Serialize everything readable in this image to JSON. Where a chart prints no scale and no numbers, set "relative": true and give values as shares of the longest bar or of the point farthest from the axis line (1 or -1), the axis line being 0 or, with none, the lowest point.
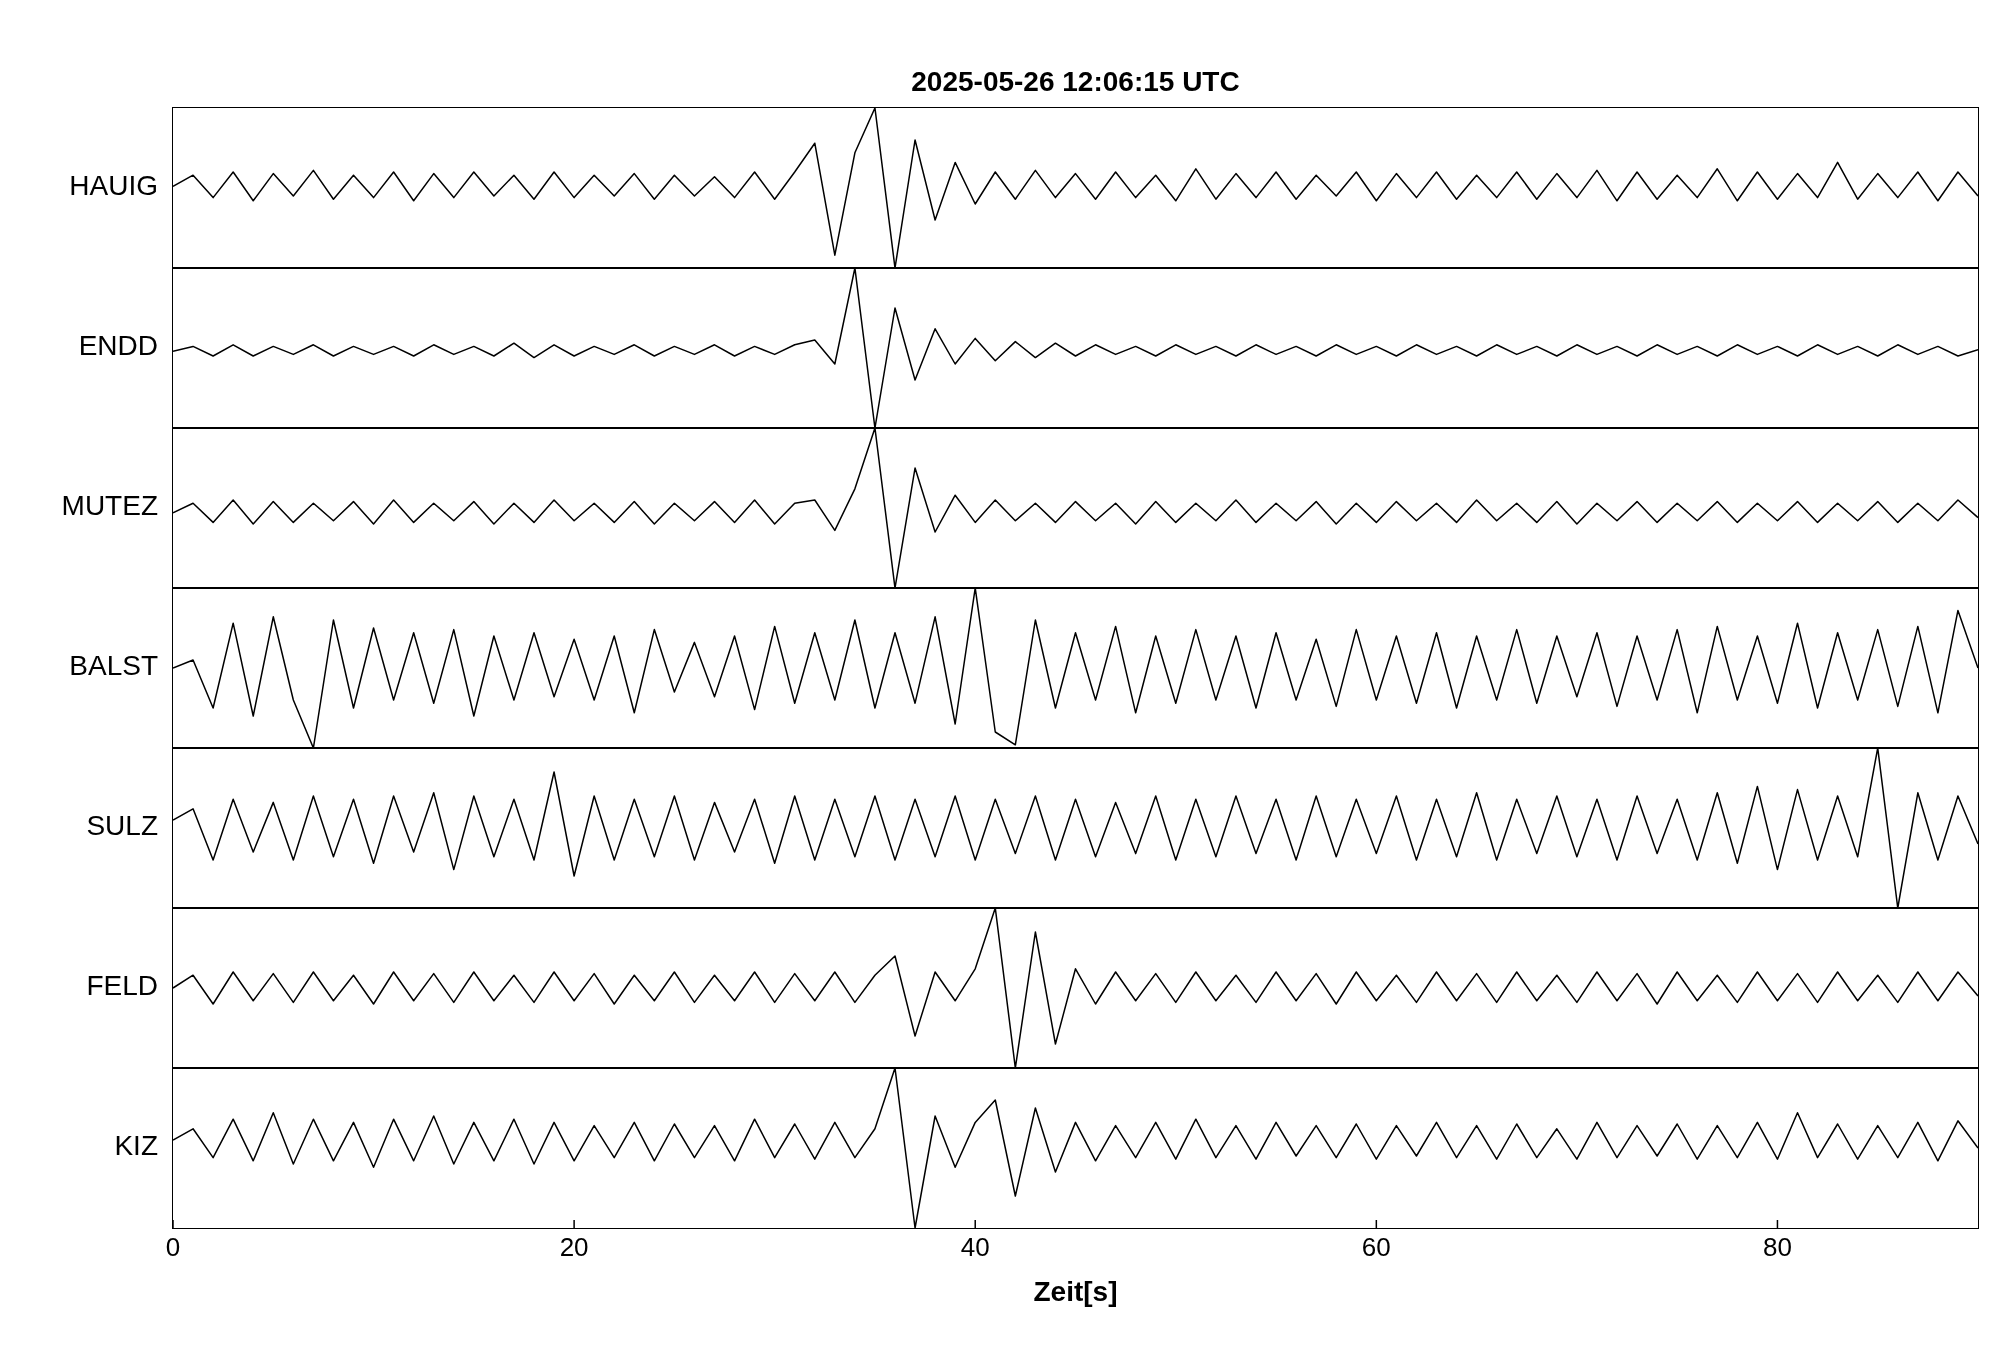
{
  "chart_data": [
    {
      "type": "line",
      "title": "2025-05-26  12:06:15 UTC",
      "ylabel": "HAUIG",
      "relative": true,
      "tick_labels": false,
      "xlim": [
        0,
        90
      ],
      "xticks": [
        0,
        20,
        40,
        60,
        80
      ],
      "legend": false,
      "x": [
        0,
        1,
        2,
        3,
        4,
        5,
        6,
        7,
        8,
        9,
        10,
        11,
        12,
        13,
        14,
        15,
        16,
        17,
        18,
        19,
        20,
        21,
        22,
        23,
        24,
        25,
        26,
        27,
        28,
        29,
        30,
        31,
        32,
        33,
        34,
        35,
        36,
        37,
        38,
        39,
        40,
        41,
        42,
        43,
        44,
        45,
        46,
        47,
        48,
        49,
        50,
        51,
        52,
        53,
        54,
        55,
        56,
        57,
        58,
        59,
        60,
        61,
        62,
        63,
        64,
        65,
        66,
        67,
        68,
        69,
        70,
        71,
        72,
        73,
        74,
        75,
        76,
        77,
        78,
        79,
        80,
        81,
        82,
        83,
        84,
        85,
        86,
        87,
        88,
        89,
        90
      ],
      "series": [
        {
          "color": "#000000",
          "values": [
            0.51,
            0.58,
            0.44,
            0.6,
            0.42,
            0.59,
            0.45,
            0.61,
            0.43,
            0.58,
            0.44,
            0.6,
            0.42,
            0.59,
            0.44,
            0.6,
            0.45,
            0.58,
            0.43,
            0.6,
            0.44,
            0.58,
            0.45,
            0.59,
            0.43,
            0.58,
            0.45,
            0.57,
            0.44,
            0.6,
            0.43,
            0.6,
            0.78,
            0.08,
            0.72,
            1.0,
            0.0,
            0.8,
            0.3,
            0.66,
            0.4,
            0.6,
            0.43,
            0.61,
            0.44,
            0.59,
            0.43,
            0.6,
            0.44,
            0.58,
            0.42,
            0.62,
            0.43,
            0.59,
            0.44,
            0.6,
            0.43,
            0.58,
            0.45,
            0.6,
            0.42,
            0.59,
            0.44,
            0.6,
            0.43,
            0.58,
            0.44,
            0.6,
            0.43,
            0.59,
            0.44,
            0.61,
            0.42,
            0.6,
            0.43,
            0.58,
            0.44,
            0.62,
            0.42,
            0.6,
            0.43,
            0.59,
            0.44,
            0.66,
            0.43,
            0.59,
            0.44,
            0.6,
            0.42,
            0.6,
            0.45
          ]
        }
      ]
    },
    {
      "type": "line",
      "ylabel": "ENDD",
      "relative": true,
      "tick_labels": false,
      "xlim": [
        0,
        90
      ],
      "xticks": [
        0,
        20,
        40,
        60,
        80
      ],
      "legend": false,
      "x": [
        0,
        1,
        2,
        3,
        4,
        5,
        6,
        7,
        8,
        9,
        10,
        11,
        12,
        13,
        14,
        15,
        16,
        17,
        18,
        19,
        20,
        21,
        22,
        23,
        24,
        25,
        26,
        27,
        28,
        29,
        30,
        31,
        32,
        33,
        34,
        35,
        36,
        37,
        38,
        39,
        40,
        41,
        42,
        43,
        44,
        45,
        46,
        47,
        48,
        49,
        50,
        51,
        52,
        53,
        54,
        55,
        56,
        57,
        58,
        59,
        60,
        61,
        62,
        63,
        64,
        65,
        66,
        67,
        68,
        69,
        70,
        71,
        72,
        73,
        74,
        75,
        76,
        77,
        78,
        79,
        80,
        81,
        82,
        83,
        84,
        85,
        86,
        87,
        88,
        89,
        90
      ],
      "series": [
        {
          "color": "#000000",
          "values": [
            0.48,
            0.51,
            0.45,
            0.52,
            0.45,
            0.51,
            0.46,
            0.52,
            0.45,
            0.51,
            0.46,
            0.51,
            0.45,
            0.52,
            0.46,
            0.51,
            0.45,
            0.53,
            0.44,
            0.52,
            0.45,
            0.51,
            0.46,
            0.52,
            0.45,
            0.51,
            0.46,
            0.52,
            0.45,
            0.51,
            0.46,
            0.52,
            0.55,
            0.4,
            1.0,
            0.0,
            0.75,
            0.3,
            0.62,
            0.4,
            0.56,
            0.42,
            0.54,
            0.44,
            0.53,
            0.45,
            0.52,
            0.46,
            0.51,
            0.45,
            0.52,
            0.46,
            0.51,
            0.45,
            0.52,
            0.46,
            0.51,
            0.45,
            0.52,
            0.46,
            0.51,
            0.45,
            0.52,
            0.46,
            0.51,
            0.45,
            0.52,
            0.46,
            0.51,
            0.45,
            0.52,
            0.46,
            0.51,
            0.45,
            0.52,
            0.46,
            0.51,
            0.45,
            0.52,
            0.46,
            0.51,
            0.45,
            0.52,
            0.46,
            0.51,
            0.45,
            0.52,
            0.46,
            0.51,
            0.45,
            0.49
          ]
        }
      ]
    },
    {
      "type": "line",
      "ylabel": "MUTEZ",
      "relative": true,
      "tick_labels": false,
      "xlim": [
        0,
        90
      ],
      "xticks": [
        0,
        20,
        40,
        60,
        80
      ],
      "legend": false,
      "x": [
        0,
        1,
        2,
        3,
        4,
        5,
        6,
        7,
        8,
        9,
        10,
        11,
        12,
        13,
        14,
        15,
        16,
        17,
        18,
        19,
        20,
        21,
        22,
        23,
        24,
        25,
        26,
        27,
        28,
        29,
        30,
        31,
        32,
        33,
        34,
        35,
        36,
        37,
        38,
        39,
        40,
        41,
        42,
        43,
        44,
        45,
        46,
        47,
        48,
        49,
        50,
        51,
        52,
        53,
        54,
        55,
        56,
        57,
        58,
        59,
        60,
        61,
        62,
        63,
        64,
        65,
        66,
        67,
        68,
        69,
        70,
        71,
        72,
        73,
        74,
        75,
        76,
        77,
        78,
        79,
        80,
        81,
        82,
        83,
        84,
        85,
        86,
        87,
        88,
        89,
        90
      ],
      "series": [
        {
          "color": "#000000",
          "values": [
            0.47,
            0.53,
            0.41,
            0.55,
            0.4,
            0.54,
            0.41,
            0.53,
            0.42,
            0.54,
            0.4,
            0.55,
            0.41,
            0.53,
            0.42,
            0.54,
            0.4,
            0.53,
            0.41,
            0.55,
            0.42,
            0.53,
            0.41,
            0.54,
            0.4,
            0.53,
            0.42,
            0.54,
            0.41,
            0.55,
            0.4,
            0.53,
            0.55,
            0.36,
            0.62,
            1.0,
            0.0,
            0.75,
            0.35,
            0.58,
            0.41,
            0.55,
            0.42,
            0.53,
            0.41,
            0.54,
            0.42,
            0.53,
            0.4,
            0.54,
            0.41,
            0.53,
            0.42,
            0.55,
            0.41,
            0.53,
            0.42,
            0.54,
            0.4,
            0.53,
            0.41,
            0.54,
            0.42,
            0.53,
            0.41,
            0.55,
            0.42,
            0.53,
            0.41,
            0.54,
            0.4,
            0.53,
            0.42,
            0.54,
            0.41,
            0.53,
            0.42,
            0.54,
            0.41,
            0.53,
            0.42,
            0.54,
            0.41,
            0.53,
            0.42,
            0.54,
            0.41,
            0.53,
            0.42,
            0.55,
            0.44
          ]
        }
      ]
    },
    {
      "type": "line",
      "ylabel": "BALST",
      "relative": true,
      "tick_labels": false,
      "xlim": [
        0,
        90
      ],
      "xticks": [
        0,
        20,
        40,
        60,
        80
      ],
      "legend": false,
      "x": [
        0,
        1,
        2,
        3,
        4,
        5,
        6,
        7,
        8,
        9,
        10,
        11,
        12,
        13,
        14,
        15,
        16,
        17,
        18,
        19,
        20,
        21,
        22,
        23,
        24,
        25,
        26,
        27,
        28,
        29,
        30,
        31,
        32,
        33,
        34,
        35,
        36,
        37,
        38,
        39,
        40,
        41,
        42,
        43,
        44,
        45,
        46,
        47,
        48,
        49,
        50,
        51,
        52,
        53,
        54,
        55,
        56,
        57,
        58,
        59,
        60,
        61,
        62,
        63,
        64,
        65,
        66,
        67,
        68,
        69,
        70,
        71,
        72,
        73,
        74,
        75,
        76,
        77,
        78,
        79,
        80,
        81,
        82,
        83,
        84,
        85,
        86,
        87,
        88,
        89,
        90
      ],
      "series": [
        {
          "color": "#000000",
          "values": [
            0.5,
            0.55,
            0.25,
            0.78,
            0.2,
            0.82,
            0.3,
            0.0,
            0.8,
            0.25,
            0.75,
            0.3,
            0.72,
            0.28,
            0.74,
            0.2,
            0.7,
            0.3,
            0.72,
            0.32,
            0.68,
            0.3,
            0.7,
            0.22,
            0.74,
            0.35,
            0.66,
            0.32,
            0.7,
            0.24,
            0.76,
            0.28,
            0.72,
            0.3,
            0.8,
            0.25,
            0.72,
            0.28,
            0.82,
            0.15,
            1.0,
            0.1,
            0.02,
            0.8,
            0.25,
            0.72,
            0.3,
            0.76,
            0.22,
            0.7,
            0.28,
            0.74,
            0.3,
            0.7,
            0.25,
            0.72,
            0.3,
            0.68,
            0.26,
            0.74,
            0.3,
            0.7,
            0.28,
            0.72,
            0.25,
            0.7,
            0.3,
            0.74,
            0.28,
            0.7,
            0.32,
            0.72,
            0.26,
            0.7,
            0.3,
            0.74,
            0.22,
            0.76,
            0.3,
            0.7,
            0.28,
            0.78,
            0.25,
            0.72,
            0.3,
            0.74,
            0.26,
            0.76,
            0.22,
            0.86,
            0.5
          ]
        }
      ]
    },
    {
      "type": "line",
      "ylabel": "SULZ",
      "relative": true,
      "tick_labels": false,
      "xlim": [
        0,
        90
      ],
      "xticks": [
        0,
        20,
        40,
        60,
        80
      ],
      "legend": false,
      "x": [
        0,
        1,
        2,
        3,
        4,
        5,
        6,
        7,
        8,
        9,
        10,
        11,
        12,
        13,
        14,
        15,
        16,
        17,
        18,
        19,
        20,
        21,
        22,
        23,
        24,
        25,
        26,
        27,
        28,
        29,
        30,
        31,
        32,
        33,
        34,
        35,
        36,
        37,
        38,
        39,
        40,
        41,
        42,
        43,
        44,
        45,
        46,
        47,
        48,
        49,
        50,
        51,
        52,
        53,
        54,
        55,
        56,
        57,
        58,
        59,
        60,
        61,
        62,
        63,
        64,
        65,
        66,
        67,
        68,
        69,
        70,
        71,
        72,
        73,
        74,
        75,
        76,
        77,
        78,
        79,
        80,
        81,
        82,
        83,
        84,
        85,
        86,
        87,
        88,
        89,
        90
      ],
      "series": [
        {
          "color": "#000000",
          "values": [
            0.55,
            0.62,
            0.3,
            0.68,
            0.35,
            0.66,
            0.3,
            0.7,
            0.32,
            0.68,
            0.28,
            0.7,
            0.35,
            0.72,
            0.24,
            0.7,
            0.32,
            0.68,
            0.3,
            0.85,
            0.2,
            0.7,
            0.3,
            0.68,
            0.32,
            0.7,
            0.3,
            0.66,
            0.35,
            0.68,
            0.28,
            0.7,
            0.3,
            0.68,
            0.32,
            0.7,
            0.3,
            0.68,
            0.32,
            0.7,
            0.3,
            0.68,
            0.34,
            0.7,
            0.3,
            0.68,
            0.32,
            0.66,
            0.34,
            0.7,
            0.3,
            0.68,
            0.32,
            0.7,
            0.34,
            0.68,
            0.3,
            0.7,
            0.32,
            0.68,
            0.34,
            0.7,
            0.3,
            0.68,
            0.32,
            0.72,
            0.3,
            0.68,
            0.34,
            0.7,
            0.32,
            0.68,
            0.3,
            0.7,
            0.34,
            0.68,
            0.3,
            0.72,
            0.28,
            0.76,
            0.24,
            0.74,
            0.3,
            0.7,
            0.32,
            1.0,
            0.0,
            0.72,
            0.3,
            0.7,
            0.4
          ]
        }
      ]
    },
    {
      "type": "line",
      "ylabel": "FELD",
      "relative": true,
      "tick_labels": false,
      "xlim": [
        0,
        90
      ],
      "xticks": [
        0,
        20,
        40,
        60,
        80
      ],
      "legend": false,
      "x": [
        0,
        1,
        2,
        3,
        4,
        5,
        6,
        7,
        8,
        9,
        10,
        11,
        12,
        13,
        14,
        15,
        16,
        17,
        18,
        19,
        20,
        21,
        22,
        23,
        24,
        25,
        26,
        27,
        28,
        29,
        30,
        31,
        32,
        33,
        34,
        35,
        36,
        37,
        38,
        39,
        40,
        41,
        42,
        43,
        44,
        45,
        46,
        47,
        48,
        49,
        50,
        51,
        52,
        53,
        54,
        55,
        56,
        57,
        58,
        59,
        60,
        61,
        62,
        63,
        64,
        65,
        66,
        67,
        68,
        69,
        70,
        71,
        72,
        73,
        74,
        75,
        76,
        77,
        78,
        79,
        80,
        81,
        82,
        83,
        84,
        85,
        86,
        87,
        88,
        89,
        90
      ],
      "series": [
        {
          "color": "#000000",
          "values": [
            0.5,
            0.58,
            0.4,
            0.6,
            0.42,
            0.59,
            0.41,
            0.6,
            0.42,
            0.58,
            0.4,
            0.6,
            0.42,
            0.59,
            0.41,
            0.6,
            0.42,
            0.58,
            0.41,
            0.6,
            0.42,
            0.59,
            0.4,
            0.58,
            0.42,
            0.6,
            0.41,
            0.58,
            0.42,
            0.6,
            0.41,
            0.59,
            0.42,
            0.6,
            0.41,
            0.58,
            0.7,
            0.2,
            0.6,
            0.42,
            0.62,
            1.0,
            0.0,
            0.85,
            0.15,
            0.62,
            0.4,
            0.6,
            0.42,
            0.59,
            0.41,
            0.6,
            0.42,
            0.58,
            0.41,
            0.6,
            0.42,
            0.59,
            0.4,
            0.6,
            0.42,
            0.58,
            0.41,
            0.6,
            0.42,
            0.59,
            0.41,
            0.6,
            0.42,
            0.58,
            0.41,
            0.6,
            0.42,
            0.59,
            0.4,
            0.6,
            0.42,
            0.58,
            0.41,
            0.6,
            0.42,
            0.59,
            0.41,
            0.6,
            0.42,
            0.58,
            0.41,
            0.6,
            0.42,
            0.6,
            0.45
          ]
        }
      ]
    },
    {
      "type": "line",
      "ylabel": "KIZ",
      "xlabel": "Zeit[s]",
      "relative": true,
      "tick_labels": "x",
      "xlim": [
        0,
        90
      ],
      "xticks": [
        0,
        20,
        40,
        60,
        80
      ],
      "legend": false,
      "x": [
        0,
        1,
        2,
        3,
        4,
        5,
        6,
        7,
        8,
        9,
        10,
        11,
        12,
        13,
        14,
        15,
        16,
        17,
        18,
        19,
        20,
        21,
        22,
        23,
        24,
        25,
        26,
        27,
        28,
        29,
        30,
        31,
        32,
        33,
        34,
        35,
        36,
        37,
        38,
        39,
        40,
        41,
        42,
        43,
        44,
        45,
        46,
        47,
        48,
        49,
        50,
        51,
        52,
        53,
        54,
        55,
        56,
        57,
        58,
        59,
        60,
        61,
        62,
        63,
        64,
        65,
        66,
        67,
        68,
        69,
        70,
        71,
        72,
        73,
        74,
        75,
        76,
        77,
        78,
        79,
        80,
        81,
        82,
        83,
        84,
        85,
        86,
        87,
        88,
        89,
        90
      ],
      "series": [
        {
          "color": "#000000",
          "values": [
            0.55,
            0.62,
            0.44,
            0.68,
            0.42,
            0.72,
            0.4,
            0.68,
            0.42,
            0.66,
            0.38,
            0.68,
            0.42,
            0.7,
            0.4,
            0.66,
            0.42,
            0.68,
            0.4,
            0.66,
            0.42,
            0.64,
            0.44,
            0.66,
            0.42,
            0.65,
            0.44,
            0.64,
            0.42,
            0.68,
            0.44,
            0.65,
            0.43,
            0.66,
            0.44,
            0.62,
            1.0,
            0.0,
            0.7,
            0.38,
            0.66,
            0.8,
            0.2,
            0.75,
            0.35,
            0.66,
            0.42,
            0.64,
            0.44,
            0.66,
            0.43,
            0.68,
            0.44,
            0.64,
            0.43,
            0.66,
            0.45,
            0.64,
            0.44,
            0.65,
            0.43,
            0.64,
            0.45,
            0.66,
            0.44,
            0.64,
            0.43,
            0.65,
            0.44,
            0.62,
            0.43,
            0.66,
            0.44,
            0.64,
            0.45,
            0.65,
            0.43,
            0.64,
            0.44,
            0.66,
            0.43,
            0.72,
            0.44,
            0.65,
            0.43,
            0.64,
            0.44,
            0.66,
            0.42,
            0.67,
            0.5
          ]
        }
      ]
    }
  ]
}
